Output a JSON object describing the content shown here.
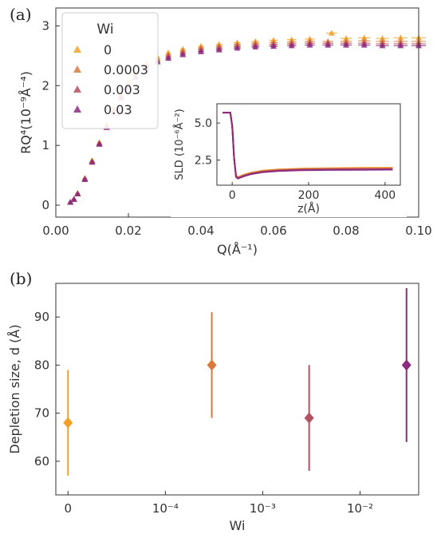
{
  "figure": {
    "panel_a_label": "(a)",
    "panel_b_label": "(b)"
  },
  "colors": {
    "wi_0": "#F2A02A",
    "wi_0_0003": "#D9793C",
    "wi_0_003": "#B55060",
    "wi_0_03": "#8C2A80"
  },
  "chart_data": [
    {
      "id": "panel-a-main",
      "type": "scatter",
      "title": "",
      "xlabel": "Q(Å⁻¹)",
      "ylabel": "RQ⁴(10⁻⁹Å⁻⁴)",
      "xlim": [
        0,
        0.1
      ],
      "ylim": [
        -0.2,
        3.3
      ],
      "xticks": [
        0,
        0.02,
        0.04,
        0.06,
        0.08,
        0.1
      ],
      "xtick_labels": [
        "0.00",
        "0.02",
        "0.04",
        "0.06",
        "0.08",
        "0.10"
      ],
      "yticks": [
        0,
        1,
        2,
        3
      ],
      "ytick_labels": [
        "0",
        "1",
        "2",
        "3"
      ],
      "grid": false,
      "legend_title": "Wi",
      "legend_position": "top-left",
      "marker": "triangle",
      "series": [
        {
          "name": "0",
          "color": "#F2A02A",
          "x": [
            0.004,
            0.005,
            0.006,
            0.008,
            0.01,
            0.012,
            0.014,
            0.016,
            0.018,
            0.02,
            0.022,
            0.025,
            0.028,
            0.031,
            0.035,
            0.04,
            0.045,
            0.05,
            0.055,
            0.06,
            0.065,
            0.07,
            0.076,
            0.08,
            0.085,
            0.09,
            0.095,
            0.1
          ],
          "y": [
            0.05,
            0.1,
            0.2,
            0.45,
            0.75,
            1.05,
            1.35,
            1.62,
            1.86,
            2.06,
            2.22,
            2.38,
            2.48,
            2.55,
            2.61,
            2.66,
            2.69,
            2.72,
            2.74,
            2.76,
            2.77,
            2.78,
            2.88,
            2.79,
            2.8,
            2.79,
            2.8,
            2.8
          ]
        },
        {
          "name": "0.0003",
          "color": "#D9793C",
          "x": [
            0.004,
            0.005,
            0.006,
            0.008,
            0.01,
            0.012,
            0.014,
            0.016,
            0.018,
            0.02,
            0.022,
            0.025,
            0.028,
            0.031,
            0.035,
            0.04,
            0.045,
            0.05,
            0.055,
            0.06,
            0.065,
            0.07,
            0.075,
            0.08,
            0.085,
            0.09,
            0.095,
            0.1
          ],
          "y": [
            0.05,
            0.1,
            0.2,
            0.45,
            0.74,
            1.04,
            1.33,
            1.6,
            1.84,
            2.03,
            2.19,
            2.35,
            2.45,
            2.52,
            2.58,
            2.63,
            2.66,
            2.69,
            2.71,
            2.72,
            2.73,
            2.74,
            2.74,
            2.74,
            2.75,
            2.74,
            2.74,
            2.74
          ]
        },
        {
          "name": "0.003",
          "color": "#B55060",
          "x": [
            0.004,
            0.005,
            0.006,
            0.008,
            0.01,
            0.012,
            0.014,
            0.016,
            0.018,
            0.02,
            0.022,
            0.025,
            0.028,
            0.031,
            0.035,
            0.04,
            0.045,
            0.05,
            0.055,
            0.06,
            0.065,
            0.07,
            0.075,
            0.08,
            0.085,
            0.09,
            0.095,
            0.1
          ],
          "y": [
            0.05,
            0.1,
            0.19,
            0.44,
            0.73,
            1.03,
            1.31,
            1.58,
            1.81,
            2.0,
            2.16,
            2.32,
            2.42,
            2.49,
            2.55,
            2.6,
            2.63,
            2.66,
            2.68,
            2.69,
            2.7,
            2.71,
            2.71,
            2.71,
            2.71,
            2.7,
            2.7,
            2.7
          ]
        },
        {
          "name": "0.03",
          "color": "#8C2A80",
          "x": [
            0.004,
            0.005,
            0.006,
            0.008,
            0.01,
            0.012,
            0.014,
            0.016,
            0.018,
            0.02,
            0.022,
            0.025,
            0.028,
            0.031,
            0.035,
            0.04,
            0.045,
            0.05,
            0.055,
            0.06,
            0.065,
            0.07,
            0.075,
            0.08,
            0.085,
            0.09,
            0.095,
            0.1
          ],
          "y": [
            0.05,
            0.1,
            0.19,
            0.43,
            0.72,
            1.02,
            1.3,
            1.56,
            1.79,
            1.98,
            2.14,
            2.3,
            2.4,
            2.46,
            2.52,
            2.57,
            2.6,
            2.63,
            2.65,
            2.66,
            2.67,
            2.68,
            2.68,
            2.68,
            2.68,
            2.67,
            2.67,
            2.67
          ]
        }
      ]
    },
    {
      "id": "panel-a-inset",
      "type": "line",
      "title": "",
      "xlabel": "z(Å)",
      "ylabel": "SLD (10⁻⁶Å⁻²)",
      "xlim": [
        -40,
        440
      ],
      "ylim": [
        0.8,
        6.3
      ],
      "xticks": [
        0,
        200,
        400
      ],
      "xtick_labels": [
        "0",
        "200",
        "400"
      ],
      "yticks": [
        2.5,
        5.0
      ],
      "ytick_labels": [
        "2.5",
        "5.0"
      ],
      "grid": false,
      "series": [
        {
          "name": "0",
          "color": "#F2A02A",
          "x": [
            -25,
            -5,
            0,
            5,
            10,
            15,
            20,
            30,
            50,
            80,
            120,
            180,
            250,
            330,
            420
          ],
          "y": [
            5.7,
            5.7,
            4.8,
            2.6,
            1.45,
            1.35,
            1.4,
            1.5,
            1.65,
            1.78,
            1.86,
            1.92,
            1.95,
            1.97,
            1.98
          ]
        },
        {
          "name": "0.0003",
          "color": "#D9793C",
          "x": [
            -25,
            -5,
            0,
            5,
            10,
            15,
            20,
            30,
            50,
            80,
            120,
            180,
            250,
            330,
            420
          ],
          "y": [
            5.7,
            5.7,
            4.8,
            2.6,
            1.42,
            1.32,
            1.37,
            1.47,
            1.62,
            1.75,
            1.83,
            1.89,
            1.92,
            1.93,
            1.94
          ]
        },
        {
          "name": "0.003",
          "color": "#B55060",
          "x": [
            -25,
            -5,
            0,
            5,
            10,
            15,
            20,
            30,
            50,
            80,
            120,
            180,
            250,
            330,
            420
          ],
          "y": [
            5.7,
            5.7,
            4.8,
            2.6,
            1.38,
            1.28,
            1.33,
            1.43,
            1.58,
            1.71,
            1.79,
            1.85,
            1.87,
            1.88,
            1.89
          ]
        },
        {
          "name": "0.03",
          "color": "#8C2A80",
          "x": [
            -25,
            -5,
            0,
            5,
            10,
            15,
            20,
            30,
            50,
            80,
            120,
            180,
            250,
            330,
            420
          ],
          "y": [
            5.7,
            5.7,
            4.8,
            2.6,
            1.35,
            1.25,
            1.3,
            1.4,
            1.55,
            1.68,
            1.76,
            1.81,
            1.83,
            1.84,
            1.85
          ]
        }
      ]
    },
    {
      "id": "panel-b",
      "type": "scatter",
      "title": "",
      "xlabel": "Wi",
      "ylabel": "Depletion size, d (Å)",
      "xscale": "symlog",
      "xlim": [
        -1.25e-05,
        0.04
      ],
      "ylim": [
        53,
        97
      ],
      "xticks": [
        0,
        0.0001,
        0.001,
        0.01
      ],
      "xtick_labels": [
        "0",
        "10⁻⁴",
        "10⁻³",
        "10⁻²"
      ],
      "yticks": [
        60,
        70,
        80,
        90
      ],
      "ytick_labels": [
        "60",
        "70",
        "80",
        "90"
      ],
      "grid": false,
      "marker": "diamond",
      "points": [
        {
          "wi": 0,
          "d": 68,
          "err_low": 57,
          "err_high": 79,
          "color": "#F2A02A"
        },
        {
          "wi": 0.0003,
          "d": 80,
          "err_low": 69,
          "err_high": 91,
          "color": "#D9793C"
        },
        {
          "wi": 0.003,
          "d": 69,
          "err_low": 58,
          "err_high": 80,
          "color": "#B55060"
        },
        {
          "wi": 0.03,
          "d": 80,
          "err_low": 64,
          "err_high": 96,
          "color": "#8C2A80"
        }
      ]
    }
  ]
}
